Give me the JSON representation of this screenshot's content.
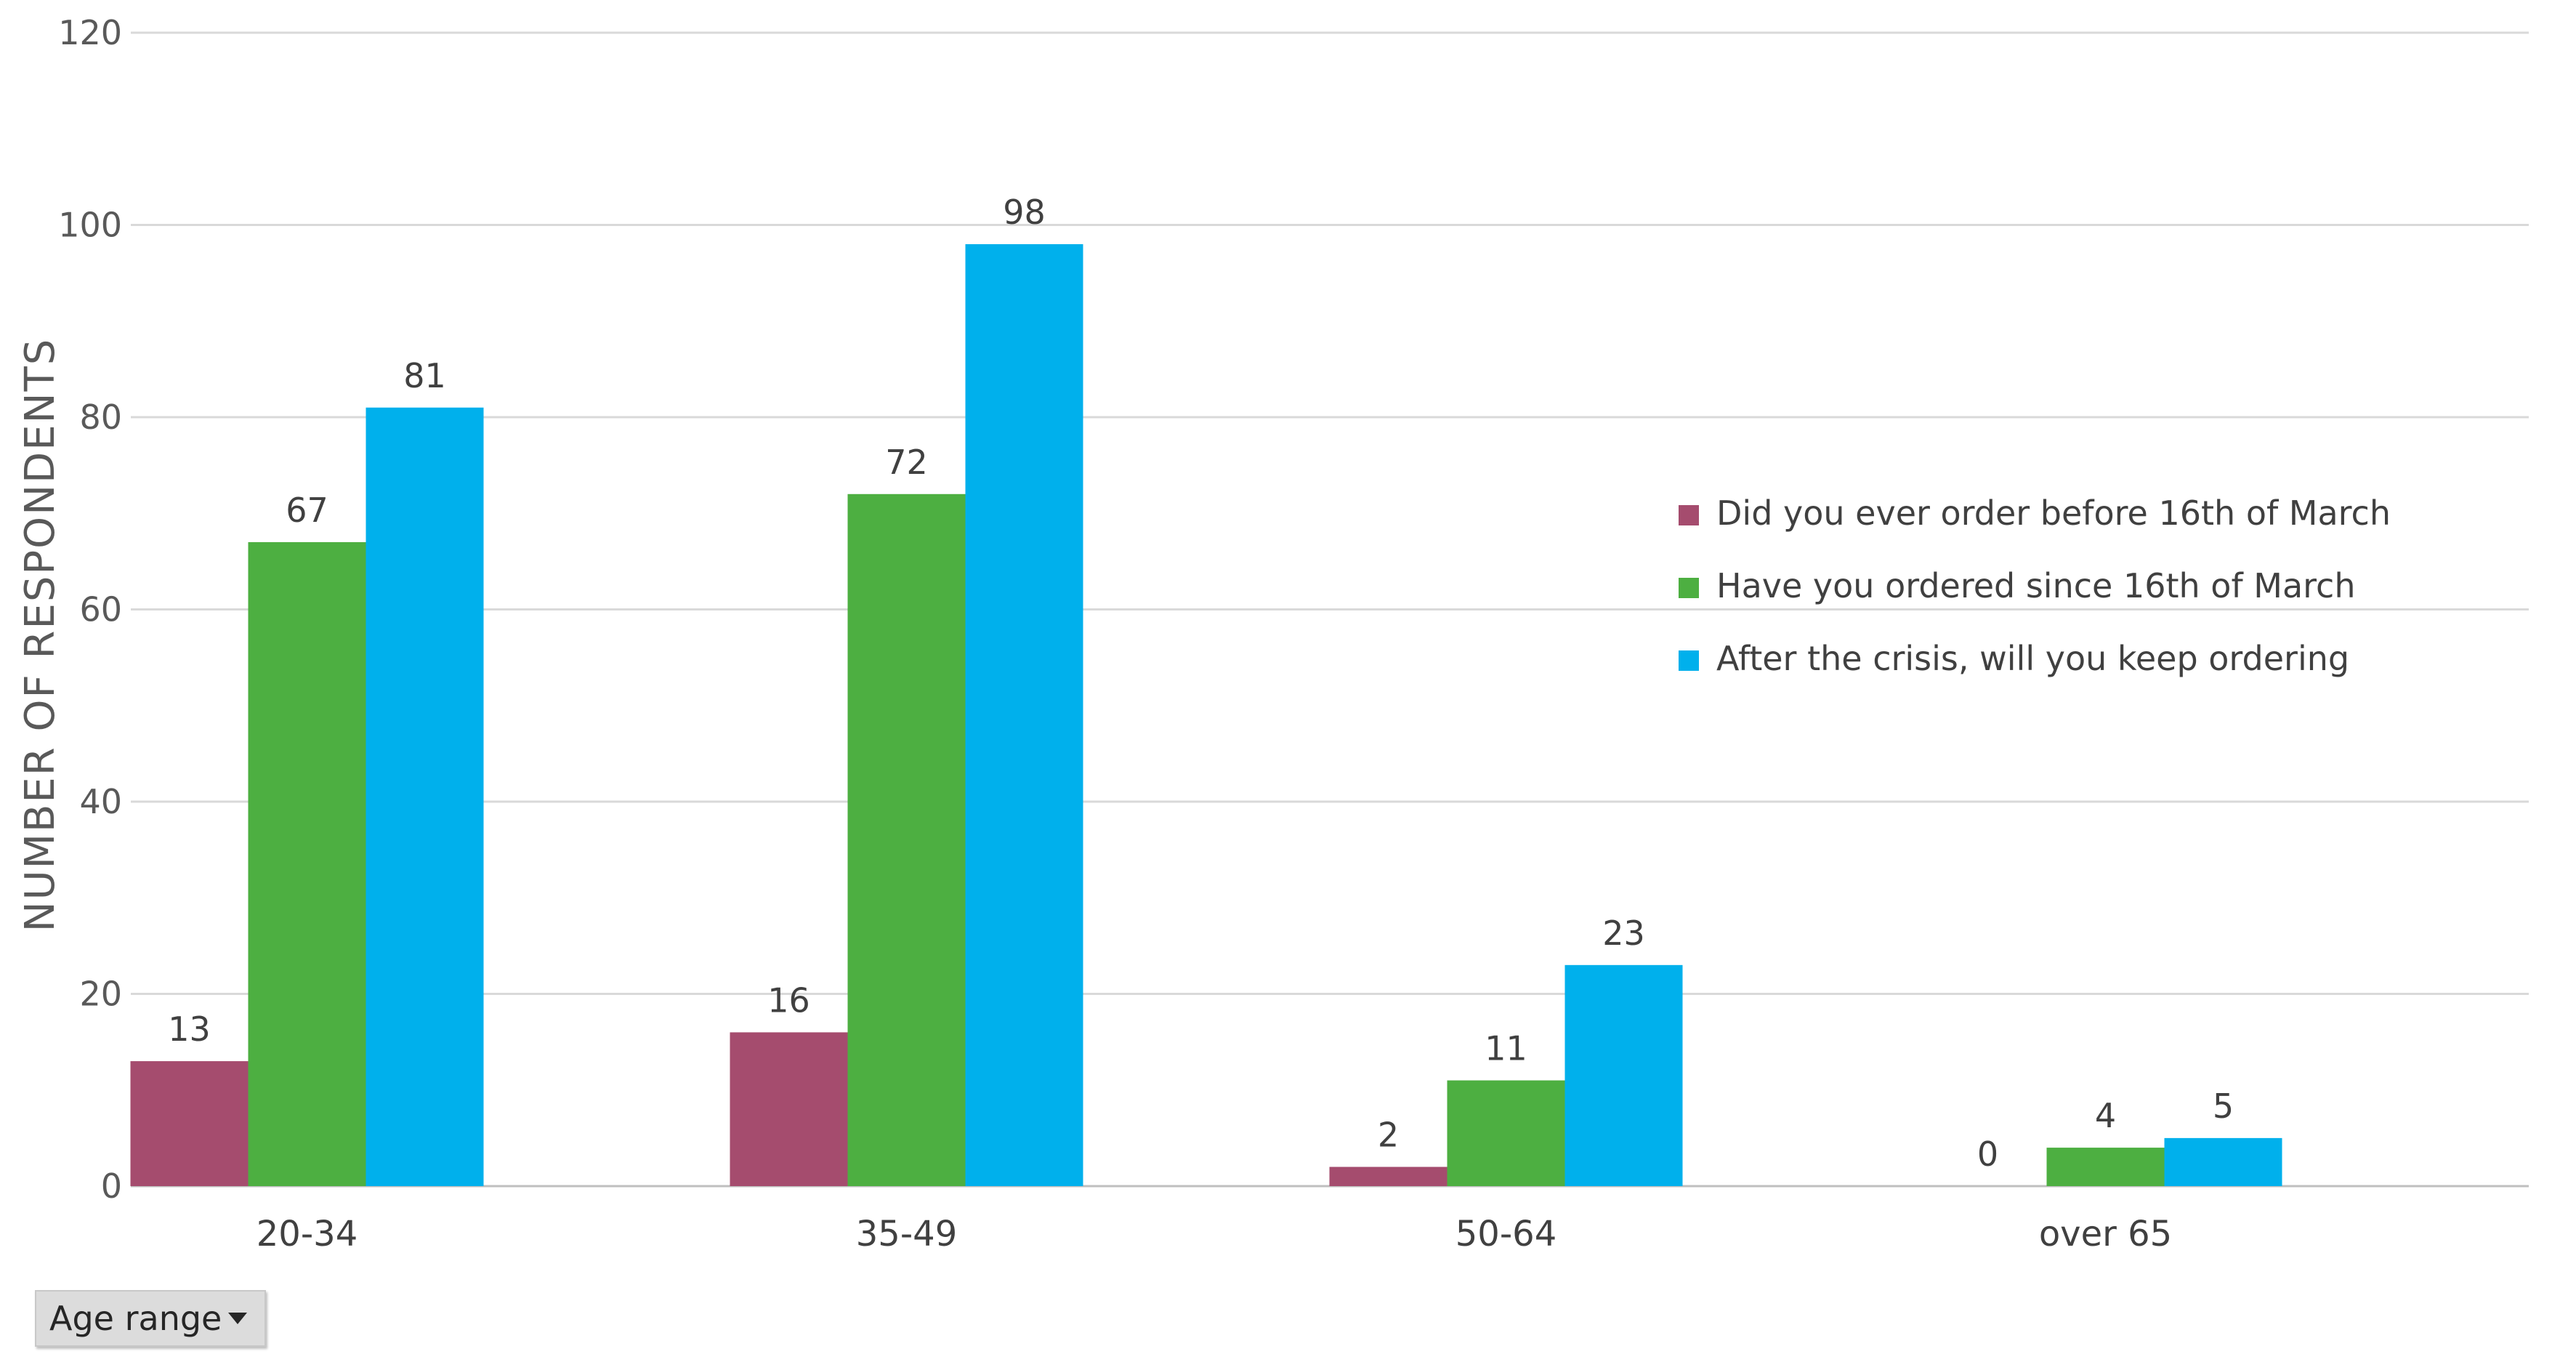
{
  "chart_data": {
    "type": "bar",
    "title": "",
    "xlabel": "",
    "ylabel": "NUMBER OF RESPONDENTS",
    "ylim": [
      0,
      120
    ],
    "yticks": [
      0,
      20,
      40,
      60,
      80,
      100,
      120
    ],
    "grid": true,
    "legend_position": "right",
    "categories": [
      "20-34",
      "35-49",
      "50-64",
      "over 65"
    ],
    "series": [
      {
        "name": "Did you ever order before 16th of March",
        "color": "#A54C6E",
        "values": [
          13,
          16,
          2,
          0
        ]
      },
      {
        "name": "Have you ordered since 16th of March",
        "color": "#4DAF41",
        "values": [
          67,
          72,
          11,
          4
        ]
      },
      {
        "name": "After the crisis, will you keep ordering",
        "color": "#00B0EC",
        "values": [
          81,
          98,
          23,
          5
        ]
      }
    ]
  },
  "field_button": {
    "label": "Age range",
    "icon": "dropdown-arrow-icon"
  }
}
